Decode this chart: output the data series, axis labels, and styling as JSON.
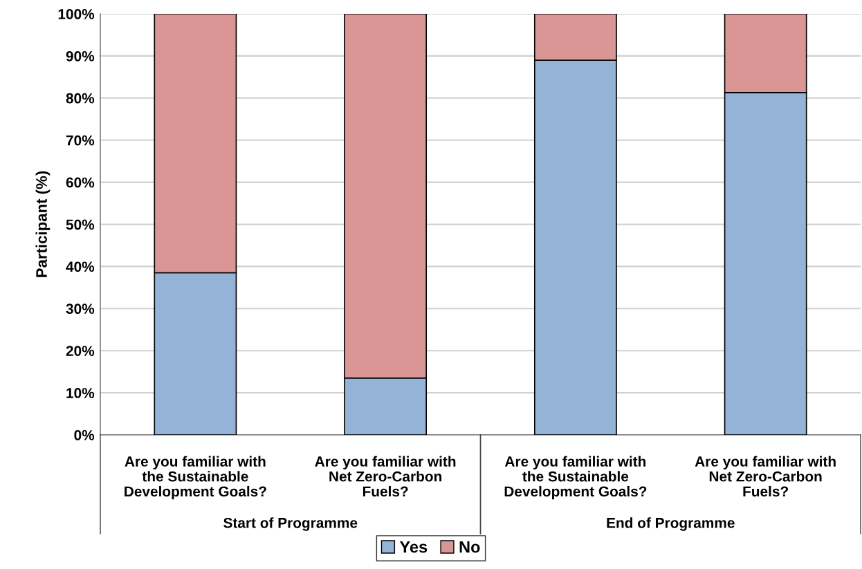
{
  "chart_data": {
    "type": "bar",
    "stacked": true,
    "ylabel": "Participant (%)",
    "categories": [
      "Are you familiar with\nthe Sustainable\nDevelopment Goals?",
      "Are you familiar with\nNet Zero-Carbon\nFuels?",
      "Are you familiar with\nthe Sustainable\nDevelopment Goals?",
      "Are you familiar with\nNet Zero-Carbon\nFuels?"
    ],
    "series": [
      {
        "name": "Yes",
        "color": "#95b3d7",
        "values": [
          38.5,
          13.5,
          89.0,
          81.3
        ]
      },
      {
        "name": "No",
        "color": "#d99694",
        "values": [
          61.5,
          86.5,
          11.0,
          18.7
        ]
      }
    ],
    "ylim": [
      0,
      100
    ],
    "yticks": [
      {
        "value": 0,
        "label": "0%"
      },
      {
        "value": 10,
        "label": "10%"
      },
      {
        "value": 20,
        "label": "20%"
      },
      {
        "value": 30,
        "label": "30%"
      },
      {
        "value": 40,
        "label": "40%"
      },
      {
        "value": 50,
        "label": "50%"
      },
      {
        "value": 60,
        "label": "60%"
      },
      {
        "value": 70,
        "label": "70%"
      },
      {
        "value": 80,
        "label": "80%"
      },
      {
        "value": 90,
        "label": "90%"
      },
      {
        "value": 100,
        "label": "100%"
      }
    ],
    "grid": "y",
    "legend": "bottom",
    "annotations": [
      "Start of Programme",
      "End of Programme"
    ]
  }
}
